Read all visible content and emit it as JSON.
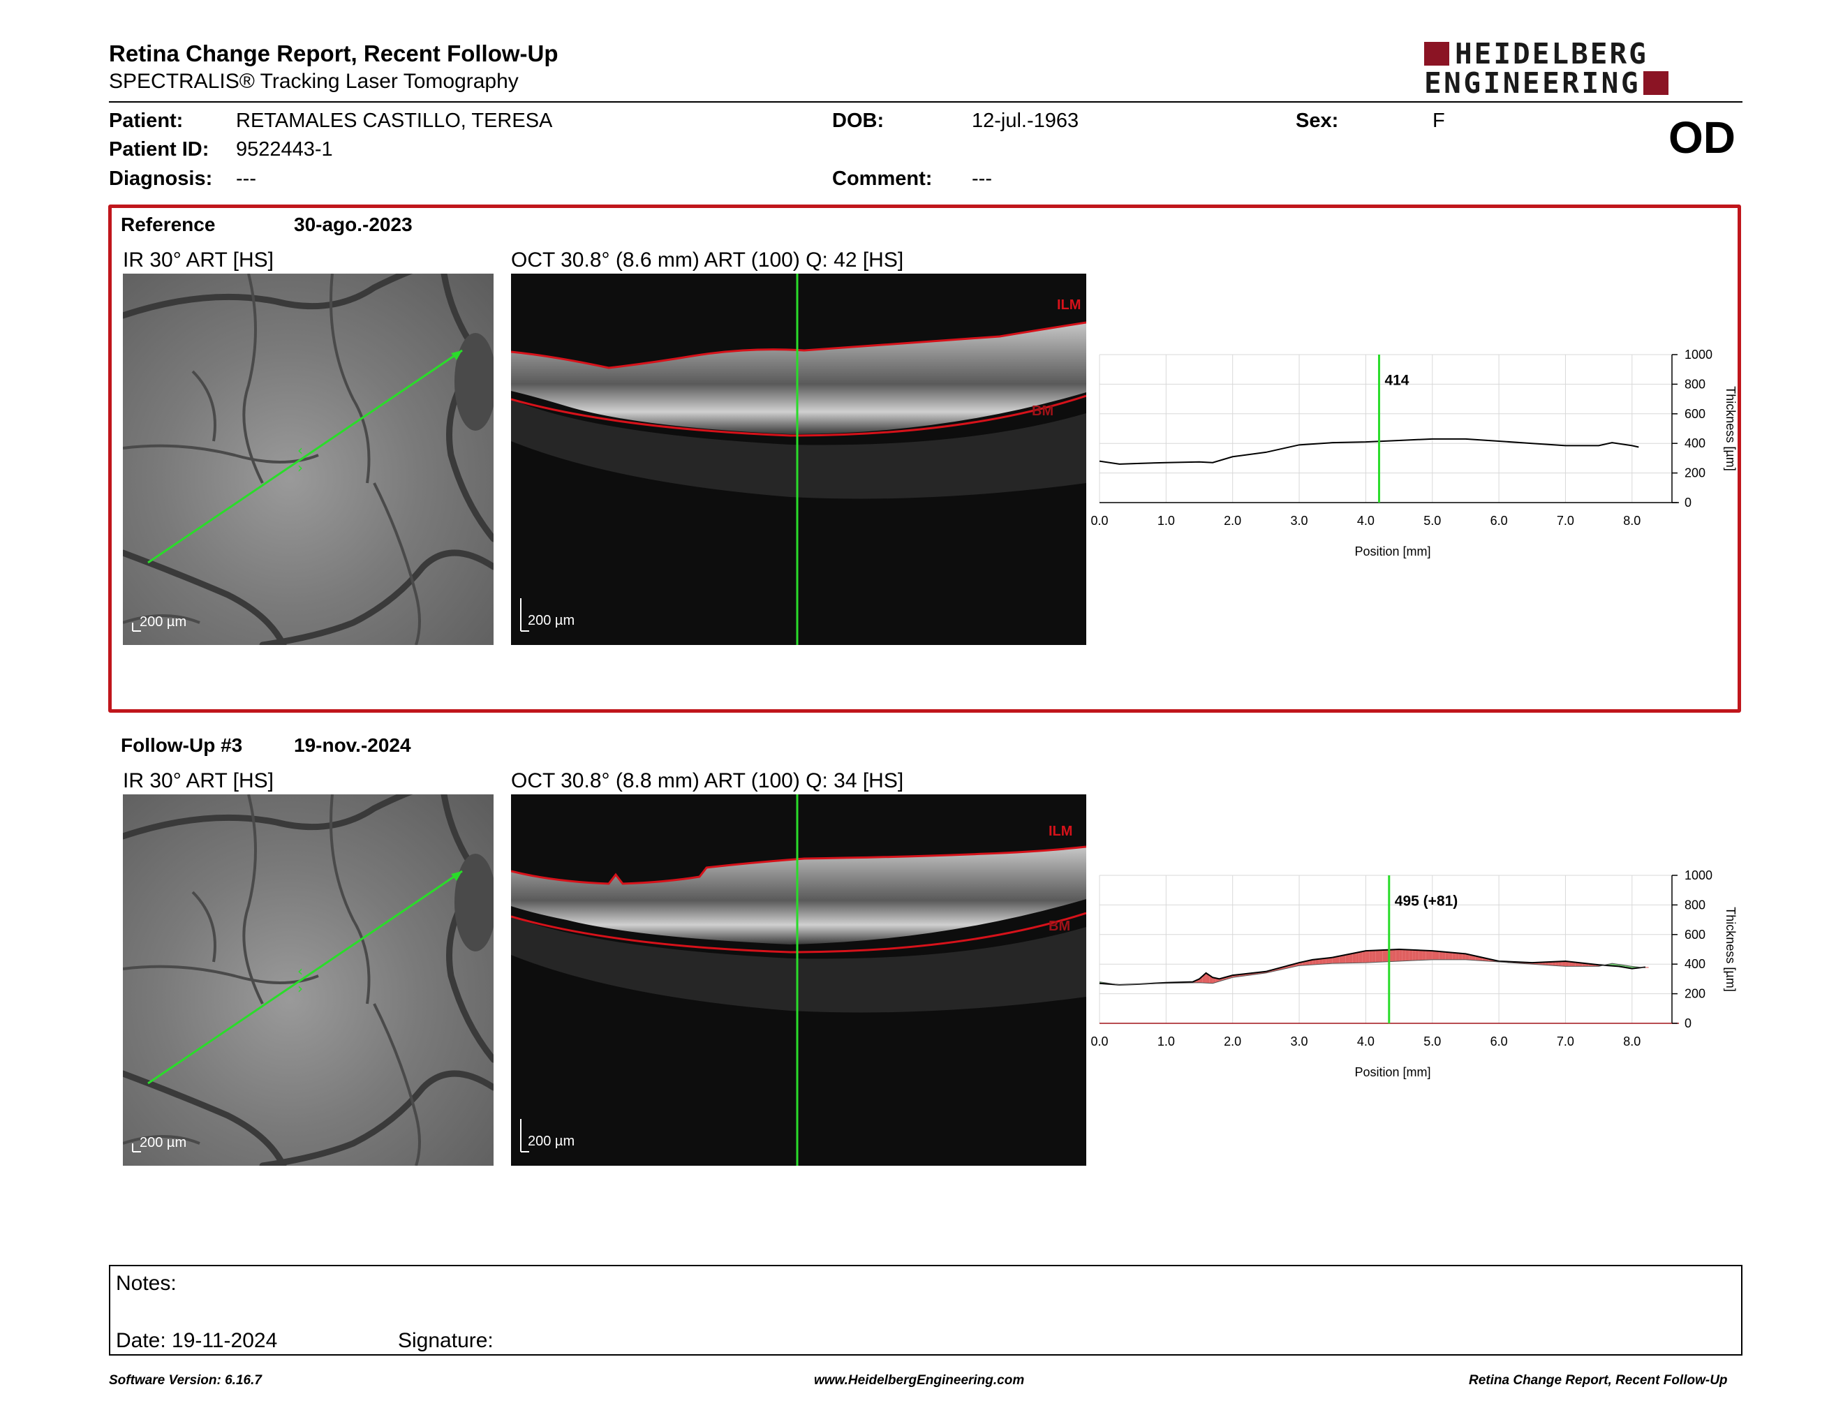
{
  "header": {
    "title": "Retina Change Report, Recent Follow-Up",
    "subtitle": "SPECTRALIS® Tracking Laser Tomography",
    "logo_line1": "HEIDELBERG",
    "logo_line2": "ENGINEERING",
    "logo_color": "#8b1424"
  },
  "patient": {
    "patient_label": "Patient:",
    "patient_name": "RETAMALES CASTILLO, TERESA",
    "id_label": "Patient ID:",
    "id_value": "9522443-1",
    "diagnosis_label": "Diagnosis:",
    "diagnosis_value": "---",
    "dob_label": "DOB:",
    "dob_value": "12-jul.-1963",
    "comment_label": "Comment:",
    "comment_value": "---",
    "sex_label": "Sex:",
    "sex_value": "F",
    "eye": "OD"
  },
  "reference": {
    "label": "Reference",
    "date": "30-ago.-2023",
    "ir_caption": "IR 30° ART [HS]",
    "oct_caption": "OCT 30.8° (8.6 mm) ART (100) Q: 42 [HS]",
    "ir_scale": "200 µm",
    "oct_scale": "200 µm",
    "ilm_label": "ILM",
    "bm_label": "BM",
    "thickness_label": "414",
    "border_color": "#c0161c"
  },
  "followup": {
    "label": "Follow-Up #3",
    "date": "19-nov.-2024",
    "ir_caption": "IR 30° ART [HS]",
    "oct_caption": "OCT 30.8° (8.8 mm) ART (100) Q: 34 [HS]",
    "ir_scale": "200 µm",
    "oct_scale": "200 µm",
    "ilm_label": "ILM",
    "bm_label": "BM",
    "thickness_label": "495 (+81)"
  },
  "chart_data": [
    {
      "type": "line",
      "title": "",
      "xlabel": "Position [mm]",
      "ylabel": "Thickness [µm]",
      "xlim": [
        0,
        8.6
      ],
      "ylim": [
        0,
        1000
      ],
      "x_ticks": [
        "0.0",
        "1.0",
        "2.0",
        "3.0",
        "4.0",
        "5.0",
        "6.0",
        "7.0",
        "8.0"
      ],
      "y_ticks": [
        "0",
        "200",
        "400",
        "600",
        "800",
        "1000"
      ],
      "grid": true,
      "cursor_x": 4.2,
      "cursor_label": "414",
      "series": [
        {
          "x": [
            0.0,
            0.3,
            0.6,
            1.0,
            1.5,
            1.7,
            2.0,
            2.5,
            3.0,
            3.5,
            4.0,
            4.5,
            5.0,
            5.5,
            6.0,
            6.5,
            7.0,
            7.5,
            7.7,
            8.0,
            8.1
          ],
          "values": [
            280,
            260,
            265,
            270,
            275,
            270,
            310,
            340,
            390,
            405,
            410,
            420,
            430,
            430,
            415,
            400,
            385,
            385,
            405,
            385,
            375
          ]
        }
      ]
    },
    {
      "type": "line",
      "title": "",
      "xlabel": "Position [mm]",
      "ylabel": "Thickness [µm]",
      "xlim": [
        0,
        8.6
      ],
      "ylim": [
        0,
        1000
      ],
      "x_ticks": [
        "0.0",
        "1.0",
        "2.0",
        "3.0",
        "4.0",
        "5.0",
        "6.0",
        "7.0",
        "8.0"
      ],
      "y_ticks": [
        "0",
        "200",
        "400",
        "600",
        "800",
        "1000"
      ],
      "grid": true,
      "cursor_x": 4.35,
      "cursor_label": "495 (+81)",
      "increase_color": "#e06060",
      "decrease_color": "#70d070",
      "series": [
        {
          "x": [
            0.0,
            0.3,
            0.6,
            1.0,
            1.4,
            1.5,
            1.6,
            1.7,
            1.8,
            2.0,
            2.5,
            3.0,
            3.2,
            3.5,
            4.0,
            4.5,
            5.0,
            5.5,
            6.0,
            6.5,
            7.0,
            7.5,
            7.8,
            8.0,
            8.2
          ],
          "values": [
            270,
            260,
            265,
            275,
            280,
            300,
            340,
            310,
            300,
            325,
            350,
            410,
            430,
            445,
            490,
            500,
            490,
            470,
            420,
            410,
            420,
            395,
            385,
            370,
            380
          ]
        },
        {
          "x": [
            0.0,
            0.3,
            0.6,
            1.0,
            1.5,
            1.7,
            2.0,
            2.5,
            3.0,
            3.5,
            4.0,
            4.5,
            5.0,
            5.5,
            6.0,
            6.5,
            7.0,
            7.5,
            7.7,
            8.0,
            8.2
          ],
          "values": [
            280,
            260,
            265,
            270,
            275,
            270,
            310,
            340,
            390,
            405,
            410,
            420,
            430,
            430,
            415,
            400,
            385,
            385,
            405,
            385,
            375
          ]
        }
      ]
    }
  ],
  "notes": {
    "notes_label": "Notes:",
    "date_label": "Date: 19-11-2024",
    "signature_label": "Signature:"
  },
  "footer": {
    "version": "Software Version: 6.16.7",
    "website": "www.HeidelbergEngineering.com",
    "report": "Retina Change Report, Recent Follow-Up"
  }
}
